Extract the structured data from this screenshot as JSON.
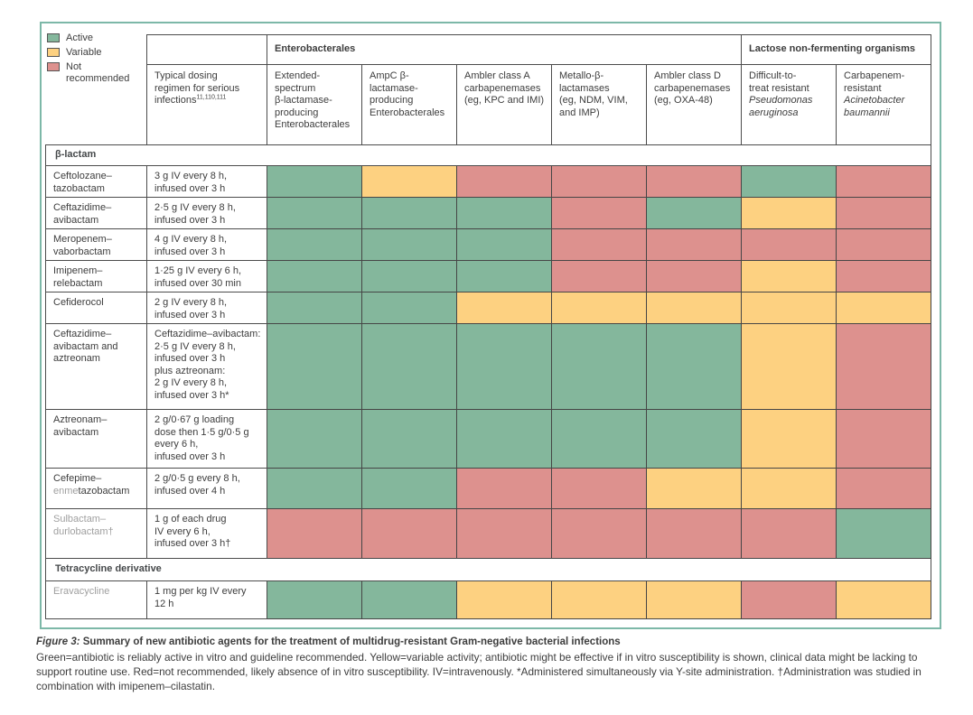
{
  "colors": {
    "active": "#84b79c",
    "variable": "#fdd181",
    "not_recommended": "#dd918e",
    "frame": "#7db8a8",
    "grid_border": "#4c4c4c",
    "text": "#3d3d3d",
    "muted_text": "#9f9f9f"
  },
  "legend": {
    "items": [
      {
        "key": "active",
        "label": "Active"
      },
      {
        "key": "variable",
        "label": "Variable"
      },
      {
        "key": "not_recommended",
        "label": "Not\nrecommended"
      }
    ]
  },
  "table": {
    "header": {
      "groups": [
        {
          "label": "Enterobacterales",
          "span": 5
        },
        {
          "label": "Lactose non-fermenting organisms",
          "span": 2
        }
      ],
      "dosing_header": {
        "lines": [
          "Typical dosing",
          "regimen for serious",
          "infections"
        ],
        "superscript": "11,110,111"
      },
      "columns": [
        {
          "lines": [
            {
              "text": "Extended-"
            },
            {
              "text": "spectrum"
            },
            {
              "text": "β-lactamase-"
            },
            {
              "text": "producing"
            },
            {
              "text": "Enterobacterales"
            }
          ]
        },
        {
          "lines": [
            {
              "text": "AmpC β-"
            },
            {
              "text": "lactamase-"
            },
            {
              "text": "producing"
            },
            {
              "text": "Enterobacterales"
            }
          ]
        },
        {
          "lines": [
            {
              "text": "Ambler class A"
            },
            {
              "text": "carbapenemases"
            },
            {
              "text": "(eg, KPC and IMI)"
            }
          ]
        },
        {
          "lines": [
            {
              "text": "Metallo-β-"
            },
            {
              "text": "lactamases"
            },
            {
              "text": "(eg, NDM, VIM,"
            },
            {
              "text": "and IMP)"
            }
          ]
        },
        {
          "lines": [
            {
              "text": "Ambler class D"
            },
            {
              "text": "carbapenemases"
            },
            {
              "text": "(eg, OXA-48)"
            }
          ]
        },
        {
          "lines": [
            {
              "text": "Difficult-to-"
            },
            {
              "text": "treat resistant"
            },
            {
              "text": "Pseudomonas",
              "italic": true
            },
            {
              "text": "aeruginosa",
              "italic": true
            }
          ]
        },
        {
          "lines": [
            {
              "text": "Carbapenem-"
            },
            {
              "text": "resistant"
            },
            {
              "text": "Acinetobacter",
              "italic": true
            },
            {
              "text": "baumannii",
              "italic": true
            }
          ]
        }
      ]
    },
    "rows": [
      {
        "type": "section",
        "label": "β-lactam"
      },
      {
        "type": "drug",
        "name_lines": [
          [
            {
              "text": "Ceftolozane–",
              "muted": false
            }
          ],
          [
            {
              "text": "tazobactam",
              "muted": false
            }
          ]
        ],
        "dosing_lines": [
          "3 g IV every 8 h,",
          "infused over 3 h"
        ],
        "cells": [
          "active",
          "variable",
          "not_recommended",
          "not_recommended",
          "not_recommended",
          "active",
          "not_recommended"
        ]
      },
      {
        "type": "drug",
        "name_lines": [
          [
            {
              "text": "Ceftazidime–",
              "muted": false
            }
          ],
          [
            {
              "text": "avibactam",
              "muted": false
            }
          ]
        ],
        "dosing_lines": [
          "2·5 g IV every 8 h,",
          "infused over 3 h"
        ],
        "cells": [
          "active",
          "active",
          "active",
          "not_recommended",
          "active",
          "variable",
          "not_recommended"
        ]
      },
      {
        "type": "drug",
        "name_lines": [
          [
            {
              "text": "Meropenem–",
              "muted": false
            }
          ],
          [
            {
              "text": "vaborbactam",
              "muted": false
            }
          ]
        ],
        "dosing_lines": [
          "4 g IV every 8 h,",
          "infused over 3 h"
        ],
        "cells": [
          "active",
          "active",
          "active",
          "not_recommended",
          "not_recommended",
          "not_recommended",
          "not_recommended"
        ]
      },
      {
        "type": "drug",
        "name_lines": [
          [
            {
              "text": "Imipenem–",
              "muted": false
            }
          ],
          [
            {
              "text": "relebactam",
              "muted": false
            }
          ]
        ],
        "dosing_lines": [
          "1·25 g IV every 6 h,",
          "infused over 30 min"
        ],
        "cells": [
          "active",
          "active",
          "active",
          "not_recommended",
          "not_recommended",
          "variable",
          "not_recommended"
        ]
      },
      {
        "type": "drug",
        "name_lines": [
          [
            {
              "text": "Cefiderocol",
              "muted": false
            }
          ]
        ],
        "dosing_lines": [
          "2 g IV every 8 h,",
          "infused over 3 h"
        ],
        "cells": [
          "active",
          "active",
          "variable",
          "variable",
          "variable",
          "variable",
          "variable"
        ]
      },
      {
        "type": "drug",
        "name_lines": [
          [
            {
              "text": "Ceftazidime–",
              "muted": false
            }
          ],
          [
            {
              "text": "avibactam and",
              "muted": false
            }
          ],
          [
            {
              "text": "aztreonam",
              "muted": false
            }
          ]
        ],
        "dosing_lines": [
          "Ceftazidime–avibactam:",
          "2·5 g IV every 8 h,",
          "infused over 3 h",
          "plus aztreonam:",
          "2 g IV every 8 h,",
          "infused over 3 h*"
        ],
        "cells": [
          "active",
          "active",
          "active",
          "active",
          "active",
          "variable",
          "not_recommended"
        ]
      },
      {
        "type": "drug",
        "name_lines": [
          [
            {
              "text": "Aztreonam–",
              "muted": false
            }
          ],
          [
            {
              "text": "avibactam",
              "muted": false
            }
          ]
        ],
        "dosing_lines": [
          "2 g/0·67 g loading",
          "dose then 1·5 g/0·5 g",
          "every 6 h,",
          "infused over 3 h"
        ],
        "cells": [
          "active",
          "active",
          "active",
          "active",
          "active",
          "variable",
          "not_recommended"
        ]
      },
      {
        "type": "drug",
        "name_lines": [
          [
            {
              "text": "Cefepime–",
              "muted": false
            }
          ],
          [
            {
              "text": "enme",
              "muted": true
            },
            {
              "text": "tazobactam",
              "muted": false
            }
          ]
        ],
        "dosing_lines": [
          "2 g/0·5 g every 8 h,",
          "infused over 4 h"
        ],
        "cells": [
          "active",
          "active",
          "not_recommended",
          "not_recommended",
          "variable",
          "variable",
          "not_recommended"
        ]
      },
      {
        "type": "drug",
        "name_lines": [
          [
            {
              "text": "Sulbactam–",
              "muted": true
            }
          ],
          [
            {
              "text": "durlobactam†",
              "muted": true
            }
          ]
        ],
        "dosing_lines": [
          "1 g of each drug",
          "IV every 6 h,",
          "infused over 3 h†"
        ],
        "cells": [
          "not_recommended",
          "not_recommended",
          "not_recommended",
          "not_recommended",
          "not_recommended",
          "not_recommended",
          "active"
        ]
      },
      {
        "type": "section",
        "label": "Tetracycline derivative"
      },
      {
        "type": "drug",
        "name_lines": [
          [
            {
              "text": "Eravacycline",
              "muted": true
            }
          ]
        ],
        "dosing_lines": [
          "1 mg per kg IV every",
          "12 h"
        ],
        "cells": [
          "active",
          "active",
          "variable",
          "variable",
          "variable",
          "not_recommended",
          "variable"
        ]
      }
    ]
  },
  "caption": {
    "figure_label": "Figure 3:",
    "title": " Summary of new antibiotic agents for the treatment of multidrug-resistant Gram-negative bacterial infections",
    "body": "Green=antibiotic is reliably active in vitro and guideline recommended. Yellow=variable activity; antibiotic might be effective if in vitro susceptibility is shown, clinical data might be lacking to support routine use. Red=not recommended, likely absence of in vitro susceptibility. IV=intravenously. *Administered simultaneously via Y-site administration. †Administration was studied in combination with imipenem–cilastatin."
  }
}
